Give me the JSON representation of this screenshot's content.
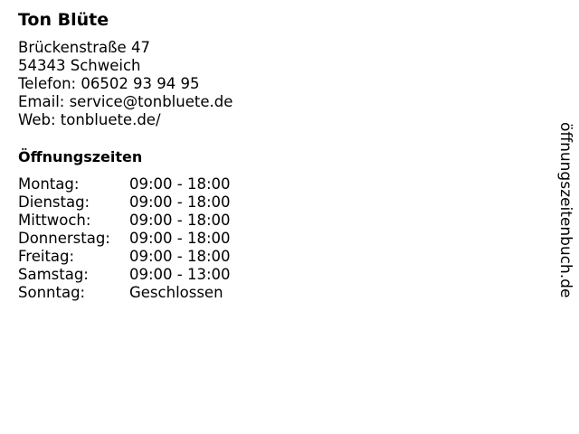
{
  "business": {
    "name": "Ton Blüte",
    "street": "Brückenstraße 47",
    "city": "54343 Schweich",
    "phone": "Telefon: 06502 93 94 95",
    "email": "Email: service@tonbluete.de",
    "web": "Web: tonbluete.de/"
  },
  "hours_title": "Öffnungszeiten",
  "hours": [
    {
      "day": "Montag:",
      "time": "09:00 - 18:00"
    },
    {
      "day": "Dienstag:",
      "time": "09:00 - 18:00"
    },
    {
      "day": "Mittwoch:",
      "time": "09:00 - 18:00"
    },
    {
      "day": "Donnerstag:",
      "time": "09:00 - 18:00"
    },
    {
      "day": "Freitag:",
      "time": "09:00 - 18:00"
    },
    {
      "day": "Samstag:",
      "time": "09:00 - 13:00"
    },
    {
      "day": "Sonntag:",
      "time": "Geschlossen"
    }
  ],
  "watermark": "öffnungszeitenbuch.de"
}
